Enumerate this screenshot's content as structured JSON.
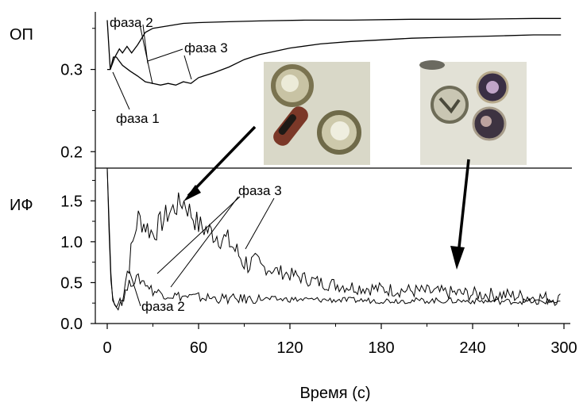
{
  "chart_data": [
    {
      "type": "line",
      "ylabel": "ОП",
      "xlim": [
        0,
        300
      ],
      "ylim": [
        0.18,
        0.37
      ],
      "yticks": [
        0.2,
        0.3
      ],
      "ytick_labels": [
        "0.2",
        "0.3"
      ],
      "grid": false,
      "series": [
        {
          "x": [
            0,
            2,
            5,
            8,
            10,
            13,
            16,
            20,
            25,
            30,
            40,
            50,
            60,
            80,
            100,
            130,
            160,
            200,
            240,
            280,
            298
          ],
          "values": [
            0.36,
            0.3,
            0.315,
            0.325,
            0.32,
            0.328,
            0.32,
            0.33,
            0.345,
            0.35,
            0.353,
            0.356,
            0.357,
            0.358,
            0.359,
            0.36,
            0.36,
            0.361,
            0.361,
            0.362,
            0.362
          ]
        },
        {
          "x": [
            0,
            2,
            4,
            6,
            8,
            10,
            15,
            20,
            25,
            30,
            35,
            40,
            45,
            50,
            55,
            60,
            70,
            80,
            90,
            100,
            120,
            140,
            160,
            180,
            200,
            220,
            240,
            260,
            280,
            298
          ],
          "values": [
            0.3,
            0.3,
            0.315,
            0.315,
            0.31,
            0.305,
            0.298,
            0.292,
            0.285,
            0.283,
            0.281,
            0.283,
            0.281,
            0.285,
            0.283,
            0.29,
            0.296,
            0.303,
            0.312,
            0.318,
            0.326,
            0.331,
            0.334,
            0.336,
            0.338,
            0.339,
            0.34,
            0.341,
            0.342,
            0.342
          ]
        }
      ],
      "annotations": [
        "фаза 2",
        "фаза 3",
        "фаза 1"
      ]
    },
    {
      "type": "line",
      "ylabel": "ИФ",
      "xlabel": "Время (с)",
      "xlim": [
        0,
        300
      ],
      "ylim": [
        0,
        1.9
      ],
      "xticks": [
        0,
        60,
        120,
        180,
        240,
        300
      ],
      "xtick_labels": [
        "0",
        "60",
        "120",
        "180",
        "240",
        "300"
      ],
      "yticks": [
        0,
        0.5,
        1.0,
        1.5
      ],
      "ytick_labels": [
        "0.0",
        "0.5",
        "1.0",
        "1.5"
      ],
      "grid": false,
      "series": [
        {
          "x": [
            0,
            2,
            4,
            6,
            10,
            15,
            20,
            25,
            30,
            40,
            50,
            60,
            70,
            80,
            90,
            100,
            120,
            140,
            160,
            180,
            200,
            220,
            240,
            260,
            280,
            298
          ],
          "values": [
            1.9,
            0.6,
            0.25,
            0.2,
            0.35,
            0.8,
            1.3,
            1.2,
            1.1,
            1.35,
            1.5,
            1.2,
            1.1,
            1.0,
            0.75,
            0.7,
            0.6,
            0.5,
            0.45,
            0.42,
            0.4,
            0.38,
            0.36,
            0.35,
            0.32,
            0.3
          ]
        },
        {
          "x": [
            0,
            3,
            6,
            10,
            15,
            20,
            25,
            30,
            40,
            50,
            60,
            80,
            100,
            140,
            180,
            220,
            260,
            298
          ],
          "values": [
            1.9,
            0.3,
            0.2,
            0.3,
            0.5,
            0.55,
            0.5,
            0.4,
            0.35,
            0.33,
            0.32,
            0.3,
            0.3,
            0.29,
            0.28,
            0.28,
            0.27,
            0.27
          ]
        }
      ],
      "annotations": [
        "фаза 3",
        "фаза 2"
      ]
    }
  ]
}
